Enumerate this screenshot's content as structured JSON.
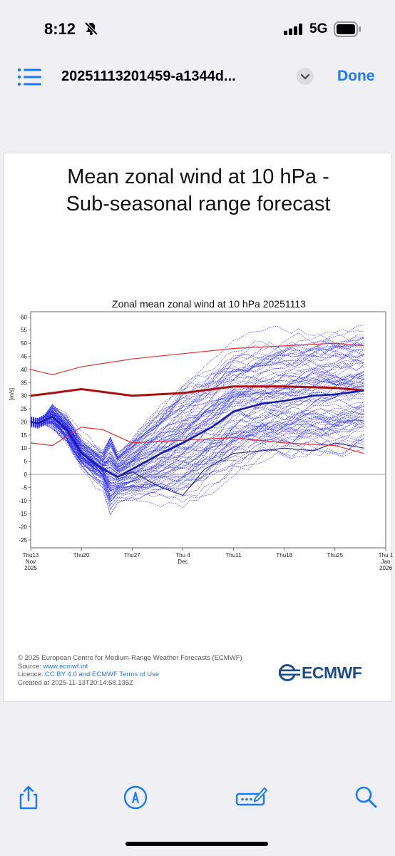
{
  "status": {
    "time": "8:12",
    "network": "5G"
  },
  "nav": {
    "file_title": "20251113201459-a1344d...",
    "done": "Done"
  },
  "document": {
    "title_line1": "Mean zonal wind at 10 hPa -",
    "title_line2": "Sub-seasonal range forecast",
    "footer": {
      "copyright": "© 2025 European Centre for Medium-Range Weather Forecasts (ECMWF)",
      "source_label": "Source: ",
      "source_link": "www.ecmwf.int",
      "licence_label": "Licence: ",
      "licence_link": "CC BY 4.0 and ECMWF Terms of Use",
      "created": "Created at 2025-11-13T20:14:58.135Z"
    },
    "logo_text": "ECMWF"
  },
  "chart_data": {
    "type": "line",
    "title": "Zonal mean zonal wind at 10 hPa 20251113",
    "ylabel": "[m/s]",
    "ylim": [
      -28,
      62
    ],
    "yticks": [
      60,
      55,
      50,
      45,
      40,
      35,
      30,
      25,
      20,
      15,
      10,
      5,
      0,
      -5,
      -10,
      -15,
      -20,
      -25
    ],
    "xlim_days": [
      0,
      49
    ],
    "xticks": [
      {
        "day": 0,
        "lines": [
          "Thu13",
          "Nov",
          "2025"
        ]
      },
      {
        "day": 7,
        "lines": [
          "Thu20"
        ]
      },
      {
        "day": 14,
        "lines": [
          "Thu27"
        ]
      },
      {
        "day": 21,
        "lines": [
          "Thu 4",
          "Dec"
        ]
      },
      {
        "day": 28,
        "lines": [
          "Thu11"
        ]
      },
      {
        "day": 35,
        "lines": [
          "Thu18"
        ]
      },
      {
        "day": 42,
        "lines": [
          "Thu25"
        ]
      },
      {
        "day": 49,
        "lines": [
          "Thu 1",
          "Jan",
          "2026"
        ]
      }
    ],
    "climatology_upper": {
      "color": "#e03030",
      "x": [
        0,
        3,
        7,
        14,
        21,
        28,
        35,
        42,
        46
      ],
      "y": [
        40,
        38,
        41,
        44,
        46,
        48,
        49,
        50,
        49
      ]
    },
    "climatology_mean": {
      "color": "#a81010",
      "x": [
        0,
        3,
        7,
        14,
        21,
        28,
        35,
        42,
        46
      ],
      "y": [
        30,
        31,
        32.5,
        30,
        31,
        33.5,
        33.5,
        33,
        32
      ]
    },
    "climatology_lower": {
      "color": "#e03030",
      "x": [
        0,
        3,
        7,
        10,
        14,
        21,
        28,
        35,
        42,
        46
      ],
      "y": [
        12,
        11,
        18,
        17,
        12,
        13,
        14,
        12,
        11,
        8
      ]
    },
    "ensemble_mean": {
      "color": "#1a1aa6",
      "x": [
        0,
        1,
        3,
        5,
        7,
        10,
        12,
        14,
        18,
        21,
        25,
        28,
        32,
        35,
        39,
        42,
        46
      ],
      "y": [
        20,
        19.5,
        22,
        17,
        8,
        2,
        -1,
        2,
        8,
        12,
        18,
        24,
        27,
        28,
        30,
        30.5,
        32
      ]
    },
    "control": {
      "color": "#2a2a6a",
      "x": [
        0,
        1,
        3,
        5,
        7,
        10,
        12,
        14,
        16,
        18,
        21,
        24,
        28,
        32,
        35,
        39,
        42,
        46
      ],
      "y": [
        20,
        19.5,
        22,
        17,
        8,
        2,
        -1,
        1,
        -2,
        -5,
        -8,
        2,
        8,
        9,
        10,
        9,
        12,
        10
      ]
    },
    "members_color": "#2d2df0",
    "members_note_count": 100
  }
}
